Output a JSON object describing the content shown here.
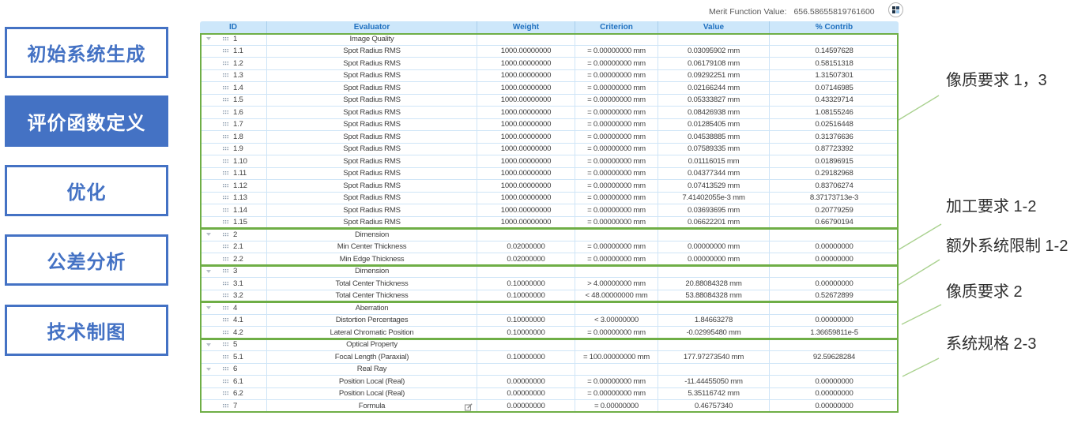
{
  "sidebar": {
    "buttons": [
      {
        "label": "初始系统生成",
        "active": false
      },
      {
        "label": "评价函数定义",
        "active": true
      },
      {
        "label": "优化",
        "active": false
      },
      {
        "label": "公差分析",
        "active": false
      },
      {
        "label": "技术制图",
        "active": false
      }
    ]
  },
  "merit": {
    "label": "Merit Function Value:",
    "value": "656.58655819761600"
  },
  "table": {
    "columns": [
      "ID",
      "Evaluator",
      "Weight",
      "Criterion",
      "Value",
      "% Contrib"
    ],
    "sections": [
      {
        "rows": [
          {
            "id": "1",
            "evaluator": "Image Quality",
            "weight": "",
            "criterion": "",
            "value": "",
            "contrib": "",
            "group": true
          },
          {
            "id": "1.1",
            "evaluator": "Spot Radius RMS",
            "weight": "1000.00000000",
            "criterion": "= 0.00000000 mm",
            "value": "0.03095902 mm",
            "contrib": "0.14597628"
          },
          {
            "id": "1.2",
            "evaluator": "Spot Radius RMS",
            "weight": "1000.00000000",
            "criterion": "= 0.00000000 mm",
            "value": "0.06179108 mm",
            "contrib": "0.58151318"
          },
          {
            "id": "1.3",
            "evaluator": "Spot Radius RMS",
            "weight": "1000.00000000",
            "criterion": "= 0.00000000 mm",
            "value": "0.09292251 mm",
            "contrib": "1.31507301"
          },
          {
            "id": "1.4",
            "evaluator": "Spot Radius RMS",
            "weight": "1000.00000000",
            "criterion": "= 0.00000000 mm",
            "value": "0.02166244 mm",
            "contrib": "0.07146985"
          },
          {
            "id": "1.5",
            "evaluator": "Spot Radius RMS",
            "weight": "1000.00000000",
            "criterion": "= 0.00000000 mm",
            "value": "0.05333827 mm",
            "contrib": "0.43329714"
          },
          {
            "id": "1.6",
            "evaluator": "Spot Radius RMS",
            "weight": "1000.00000000",
            "criterion": "= 0.00000000 mm",
            "value": "0.08426938 mm",
            "contrib": "1.08155246"
          },
          {
            "id": "1.7",
            "evaluator": "Spot Radius RMS",
            "weight": "1000.00000000",
            "criterion": "= 0.00000000 mm",
            "value": "0.01285405 mm",
            "contrib": "0.02516448"
          },
          {
            "id": "1.8",
            "evaluator": "Spot Radius RMS",
            "weight": "1000.00000000",
            "criterion": "= 0.00000000 mm",
            "value": "0.04538885 mm",
            "contrib": "0.31376636"
          },
          {
            "id": "1.9",
            "evaluator": "Spot Radius RMS",
            "weight": "1000.00000000",
            "criterion": "= 0.00000000 mm",
            "value": "0.07589335 mm",
            "contrib": "0.87723392"
          },
          {
            "id": "1.10",
            "evaluator": "Spot Radius RMS",
            "weight": "1000.00000000",
            "criterion": "= 0.00000000 mm",
            "value": "0.01116015 mm",
            "contrib": "0.01896915"
          },
          {
            "id": "1.11",
            "evaluator": "Spot Radius RMS",
            "weight": "1000.00000000",
            "criterion": "= 0.00000000 mm",
            "value": "0.04377344 mm",
            "contrib": "0.29182968"
          },
          {
            "id": "1.12",
            "evaluator": "Spot Radius RMS",
            "weight": "1000.00000000",
            "criterion": "= 0.00000000 mm",
            "value": "0.07413529 mm",
            "contrib": "0.83706274"
          },
          {
            "id": "1.13",
            "evaluator": "Spot Radius RMS",
            "weight": "1000.00000000",
            "criterion": "= 0.00000000 mm",
            "value": "7.41402055e-3 mm",
            "contrib": "8.37173713e-3"
          },
          {
            "id": "1.14",
            "evaluator": "Spot Radius RMS",
            "weight": "1000.00000000",
            "criterion": "= 0.00000000 mm",
            "value": "0.03693695 mm",
            "contrib": "0.20779259"
          },
          {
            "id": "1.15",
            "evaluator": "Spot Radius RMS",
            "weight": "1000.00000000",
            "criterion": "= 0.00000000 mm",
            "value": "0.06622201 mm",
            "contrib": "0.66790194"
          }
        ]
      },
      {
        "rows": [
          {
            "id": "2",
            "evaluator": "Dimension",
            "weight": "",
            "criterion": "",
            "value": "",
            "contrib": "",
            "group": true
          },
          {
            "id": "2.1",
            "evaluator": "Min Center Thickness",
            "weight": "0.02000000",
            "criterion": "= 0.00000000 mm",
            "value": "0.00000000 mm",
            "contrib": "0.00000000"
          },
          {
            "id": "2.2",
            "evaluator": "Min Edge Thickness",
            "weight": "0.02000000",
            "criterion": "= 0.00000000 mm",
            "value": "0.00000000 mm",
            "contrib": "0.00000000"
          }
        ]
      },
      {
        "rows": [
          {
            "id": "3",
            "evaluator": "Dimension",
            "weight": "",
            "criterion": "",
            "value": "",
            "contrib": "",
            "group": true
          },
          {
            "id": "3.1",
            "evaluator": "Total Center Thickness",
            "weight": "0.10000000",
            "criterion": "> 4.00000000 mm",
            "value": "20.88084328 mm",
            "contrib": "0.00000000"
          },
          {
            "id": "3.2",
            "evaluator": "Total Center Thickness",
            "weight": "0.10000000",
            "criterion": "< 48.00000000 mm",
            "value": "53.88084328 mm",
            "contrib": "0.52672899"
          }
        ]
      },
      {
        "rows": [
          {
            "id": "4",
            "evaluator": "Aberration",
            "weight": "",
            "criterion": "",
            "value": "",
            "contrib": "",
            "group": true
          },
          {
            "id": "4.1",
            "evaluator": "Distortion Percentages",
            "weight": "0.10000000",
            "criterion": "< 3.00000000",
            "value": "1.84663278",
            "contrib": "0.00000000"
          },
          {
            "id": "4.2",
            "evaluator": "Lateral Chromatic Position",
            "weight": "0.10000000",
            "criterion": "= 0.00000000 mm",
            "value": "-0.02995480 mm",
            "contrib": "1.36659811e-5"
          }
        ]
      },
      {
        "rows": [
          {
            "id": "5",
            "evaluator": "Optical Property",
            "weight": "",
            "criterion": "",
            "value": "",
            "contrib": "",
            "group": true
          },
          {
            "id": "5.1",
            "evaluator": "Focal Length (Paraxial)",
            "weight": "0.10000000",
            "criterion": "= 100.00000000 mm",
            "value": "177.97273540 mm",
            "contrib": "92.59628284"
          },
          {
            "id": "6",
            "evaluator": "Real Ray",
            "weight": "",
            "criterion": "",
            "value": "",
            "contrib": "",
            "group": true
          },
          {
            "id": "6.1",
            "evaluator": "Position Local (Real)",
            "weight": "0.00000000",
            "criterion": "= 0.00000000 mm",
            "value": "-11.44455050 mm",
            "contrib": "0.00000000"
          },
          {
            "id": "6.2",
            "evaluator": "Position Local (Real)",
            "weight": "0.00000000",
            "criterion": "= 0.00000000 mm",
            "value": "5.35116742 mm",
            "contrib": "0.00000000"
          },
          {
            "id": "7",
            "evaluator": "Formula",
            "weight": "0.00000000",
            "criterion": "= 0.00000000",
            "value": "0.46757340",
            "contrib": "0.00000000",
            "edit": true
          }
        ]
      }
    ]
  },
  "annotations": [
    {
      "text": "像质要求 1，3"
    },
    {
      "text": "加工要求 1-2"
    },
    {
      "text": "额外系统限制 1-2"
    },
    {
      "text": "像质要求 2"
    },
    {
      "text": "系统规格 2-3"
    }
  ]
}
